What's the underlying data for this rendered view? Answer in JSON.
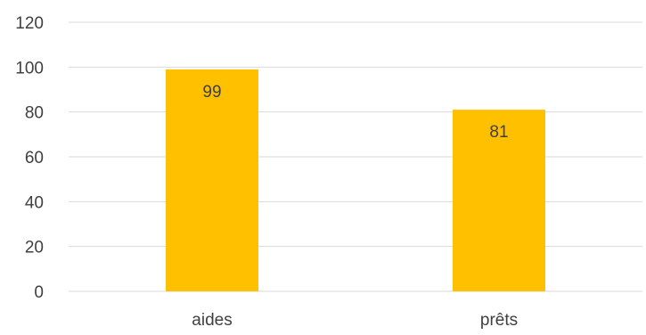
{
  "chart_data": {
    "type": "bar",
    "categories": [
      "aides",
      "prêts"
    ],
    "values": [
      99,
      81
    ],
    "data_labels": [
      "99",
      "81"
    ],
    "title": "",
    "xlabel": "",
    "ylabel": "",
    "ylim": [
      0,
      120
    ],
    "y_ticks": [
      0,
      20,
      40,
      60,
      80,
      100,
      120
    ],
    "y_tick_labels": [
      "0",
      "20",
      "40",
      "60",
      "80",
      "100",
      "120"
    ],
    "grid": true,
    "legend": "none",
    "bar_color": "#ffc000",
    "grid_color": "#d9d9d9",
    "text_color": "#404040"
  }
}
